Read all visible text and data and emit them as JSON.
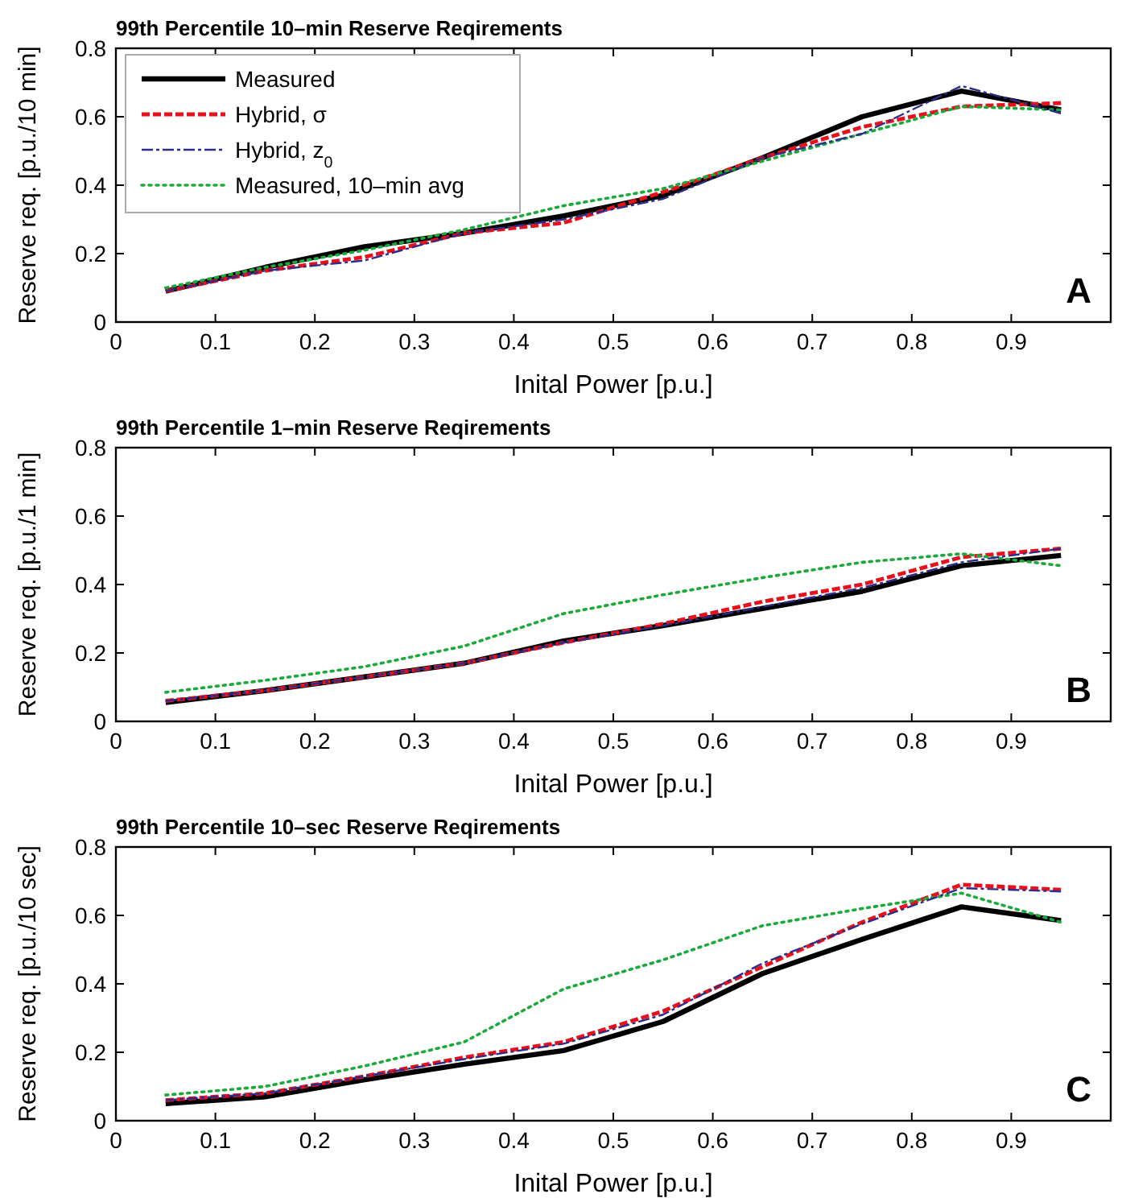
{
  "chart_data": [
    {
      "type": "line",
      "title": "99th Percentile 10–min Reserve Reqirements",
      "xlabel": "Inital Power [p.u.]",
      "ylabel": "Reserve req. [p.u./10 min]",
      "x": [
        0.05,
        0.15,
        0.25,
        0.35,
        0.45,
        0.55,
        0.65,
        0.75,
        0.85,
        0.95
      ],
      "xlim": [
        0,
        1
      ],
      "xticks": [
        0,
        0.1,
        0.2,
        0.3,
        0.4,
        0.5,
        0.6,
        0.7,
        0.8,
        0.9
      ],
      "ylim": [
        0,
        0.8
      ],
      "yticks": [
        0,
        0.2,
        0.4,
        0.6,
        0.8
      ],
      "grid": false,
      "legend": "top left",
      "marker": "none",
      "annotations": [
        "A"
      ],
      "series": [
        {
          "name": "Measured",
          "color": "#000000",
          "line_style": "solid",
          "values": [
            0.09,
            0.16,
            0.22,
            0.26,
            0.31,
            0.37,
            0.48,
            0.6,
            0.675,
            0.62
          ]
        },
        {
          "name": "Hybrid, σ",
          "color": "#e8101b",
          "line_style": "dashed",
          "values": [
            0.09,
            0.15,
            0.19,
            0.26,
            0.29,
            0.38,
            0.48,
            0.57,
            0.63,
            0.64
          ]
        },
        {
          "name": "Hybrid, z$_{0}$",
          "color": "#2c2c8c",
          "line_style": "dashdot",
          "values": [
            0.09,
            0.15,
            0.18,
            0.26,
            0.3,
            0.36,
            0.48,
            0.55,
            0.69,
            0.61
          ]
        },
        {
          "name": "Measured, 10–min avg",
          "color": "#1aaa3a",
          "line_style": "dotted",
          "values": [
            0.1,
            0.16,
            0.21,
            0.27,
            0.34,
            0.39,
            0.47,
            0.55,
            0.63,
            0.62
          ]
        }
      ]
    },
    {
      "type": "line",
      "title": "99th Percentile 1–min Reserve Reqirements",
      "xlabel": "Inital Power [p.u.]",
      "ylabel": "Reserve req. [p.u./1 min]",
      "x": [
        0.05,
        0.15,
        0.25,
        0.35,
        0.45,
        0.55,
        0.65,
        0.75,
        0.85,
        0.95
      ],
      "xlim": [
        0,
        1
      ],
      "xticks": [
        0,
        0.1,
        0.2,
        0.3,
        0.4,
        0.5,
        0.6,
        0.7,
        0.8,
        0.9
      ],
      "ylim": [
        0,
        0.8
      ],
      "yticks": [
        0,
        0.2,
        0.4,
        0.6,
        0.8
      ],
      "grid": false,
      "legend": false,
      "marker": "none",
      "annotations": [
        "B"
      ],
      "series": [
        {
          "color": "#000000",
          "line_style": "solid",
          "values": [
            0.055,
            0.09,
            0.13,
            0.17,
            0.235,
            0.28,
            0.33,
            0.38,
            0.455,
            0.485
          ]
        },
        {
          "color": "#e8101b",
          "line_style": "dashed",
          "values": [
            0.06,
            0.09,
            0.13,
            0.17,
            0.23,
            0.285,
            0.35,
            0.4,
            0.48,
            0.505
          ]
        },
        {
          "color": "#2c2c8c",
          "line_style": "dashdot",
          "values": [
            0.06,
            0.09,
            0.13,
            0.17,
            0.23,
            0.28,
            0.335,
            0.39,
            0.465,
            0.505
          ]
        },
        {
          "color": "#1aaa3a",
          "line_style": "dotted",
          "values": [
            0.085,
            0.12,
            0.16,
            0.22,
            0.315,
            0.37,
            0.42,
            0.465,
            0.49,
            0.455
          ]
        }
      ]
    },
    {
      "type": "line",
      "title": "99th Percentile 10–sec Reserve Reqirements",
      "xlabel": "Inital Power [p.u.]",
      "ylabel": "Reserve req. [p.u./10 sec]",
      "x": [
        0.05,
        0.15,
        0.25,
        0.35,
        0.45,
        0.55,
        0.65,
        0.75,
        0.85,
        0.95
      ],
      "xlim": [
        0,
        1
      ],
      "xticks": [
        0,
        0.1,
        0.2,
        0.3,
        0.4,
        0.5,
        0.6,
        0.7,
        0.8,
        0.9
      ],
      "ylim": [
        0,
        0.8
      ],
      "yticks": [
        0,
        0.2,
        0.4,
        0.6,
        0.8
      ],
      "grid": false,
      "legend": false,
      "marker": "none",
      "annotations": [
        "C"
      ],
      "series": [
        {
          "color": "#000000",
          "line_style": "solid",
          "values": [
            0.05,
            0.07,
            0.12,
            0.165,
            0.205,
            0.29,
            0.43,
            0.53,
            0.625,
            0.585
          ]
        },
        {
          "color": "#e8101b",
          "line_style": "dashed",
          "values": [
            0.06,
            0.08,
            0.13,
            0.185,
            0.23,
            0.32,
            0.45,
            0.58,
            0.69,
            0.675
          ]
        },
        {
          "color": "#2c2c8c",
          "line_style": "dashdot",
          "values": [
            0.06,
            0.08,
            0.13,
            0.18,
            0.225,
            0.31,
            0.46,
            0.575,
            0.68,
            0.67
          ]
        },
        {
          "color": "#1aaa3a",
          "line_style": "dotted",
          "values": [
            0.075,
            0.1,
            0.16,
            0.23,
            0.385,
            0.47,
            0.57,
            0.62,
            0.665,
            0.58
          ]
        }
      ]
    }
  ]
}
